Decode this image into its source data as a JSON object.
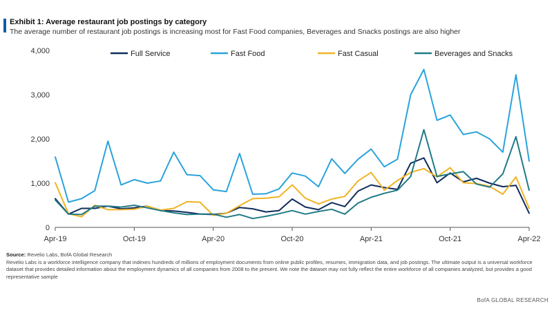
{
  "title": "Exhibit 1: Average restaurant job postings by category",
  "subtitle": "The average number of restaurant job postings is increasing most for Fast Food companies, Beverages and Snacks postings are also higher",
  "footer": {
    "source_label": "Source:",
    "source_text": "Revelio Labs, BofA Global Research",
    "note": "Revelio Labs is a workforce intelligence company that indexes hundreds of millions of employment documents from online public profiles, resumes, immigration data, and job postings. The ultimate output is a universal workforce dataset that provides detailed information about the employment dynamics of all companies from 2008 to the present. We note the dataset may not fully reflect the entire workforce of all companies analyzed, but provides a good representative sample",
    "credit": "BofA GLOBAL RESEARCH"
  },
  "colors": {
    "Full Service": "#0f2b5b",
    "Fast Food": "#29a3dc",
    "Fast Casual": "#f0b323",
    "Beverages and Snacks": "#1f7a85",
    "accent": "#0b5ea8"
  },
  "chart_data": {
    "type": "line",
    "title": "Exhibit 1: Average restaurant job postings by category",
    "xlabel": "",
    "ylabel": "",
    "ylim": [
      0,
      4000
    ],
    "yticks": [
      "0",
      "1,000",
      "2,000",
      "3,000",
      "4,000"
    ],
    "ytick_values": [
      0,
      1000,
      2000,
      3000,
      4000
    ],
    "x": [
      "Apr-19",
      "May-19",
      "Jun-19",
      "Jul-19",
      "Aug-19",
      "Sep-19",
      "Oct-19",
      "Nov-19",
      "Dec-19",
      "Jan-20",
      "Feb-20",
      "Mar-20",
      "Apr-20",
      "May-20",
      "Jun-20",
      "Jul-20",
      "Aug-20",
      "Sep-20",
      "Oct-20",
      "Nov-20",
      "Dec-20",
      "Jan-21",
      "Feb-21",
      "Mar-21",
      "Apr-21",
      "May-21",
      "Jun-21",
      "Jul-21",
      "Aug-21",
      "Sep-21",
      "Oct-21",
      "Nov-21",
      "Dec-21",
      "Jan-22",
      "Feb-22",
      "Mar-22",
      "Apr-22"
    ],
    "xtick_labels": [
      "Apr-19",
      "Oct-19",
      "Apr-20",
      "Oct-20",
      "Apr-21",
      "Oct-21",
      "Apr-22"
    ],
    "xtick_indices": [
      0,
      6,
      12,
      18,
      24,
      30,
      36
    ],
    "grid": false,
    "legend_position": "top",
    "series": [
      {
        "name": "Full Service",
        "values": [
          650,
          300,
          430,
          430,
          480,
          420,
          440,
          480,
          380,
          370,
          340,
          300,
          290,
          320,
          450,
          420,
          350,
          380,
          640,
          460,
          400,
          560,
          470,
          820,
          960,
          900,
          860,
          1450,
          1570,
          1010,
          1230,
          1030,
          1110,
          1000,
          920,
          950,
          320
        ]
      },
      {
        "name": "Fast Food",
        "values": [
          1590,
          570,
          650,
          830,
          1950,
          960,
          1080,
          1000,
          1050,
          1700,
          1190,
          1170,
          850,
          810,
          1670,
          750,
          760,
          870,
          1230,
          1160,
          920,
          1550,
          1220,
          1540,
          1770,
          1370,
          1540,
          3000,
          3570,
          2420,
          2540,
          2100,
          2160,
          2000,
          1700,
          3450,
          1500
        ]
      },
      {
        "name": "Fast Casual",
        "values": [
          1010,
          310,
          240,
          500,
          400,
          400,
          410,
          480,
          390,
          430,
          580,
          570,
          270,
          320,
          490,
          650,
          660,
          690,
          960,
          660,
          530,
          640,
          700,
          1050,
          1240,
          840,
          1060,
          1240,
          1330,
          1140,
          1350,
          1010,
          990,
          930,
          750,
          1140,
          430
        ]
      },
      {
        "name": "Beverages and Snacks",
        "values": [
          620,
          300,
          290,
          480,
          480,
          460,
          500,
          440,
          380,
          330,
          290,
          300,
          300,
          230,
          290,
          200,
          250,
          310,
          380,
          300,
          360,
          410,
          300,
          550,
          680,
          770,
          840,
          1150,
          2210,
          1150,
          1210,
          1260,
          980,
          910,
          1210,
          2050,
          840
        ]
      }
    ]
  }
}
